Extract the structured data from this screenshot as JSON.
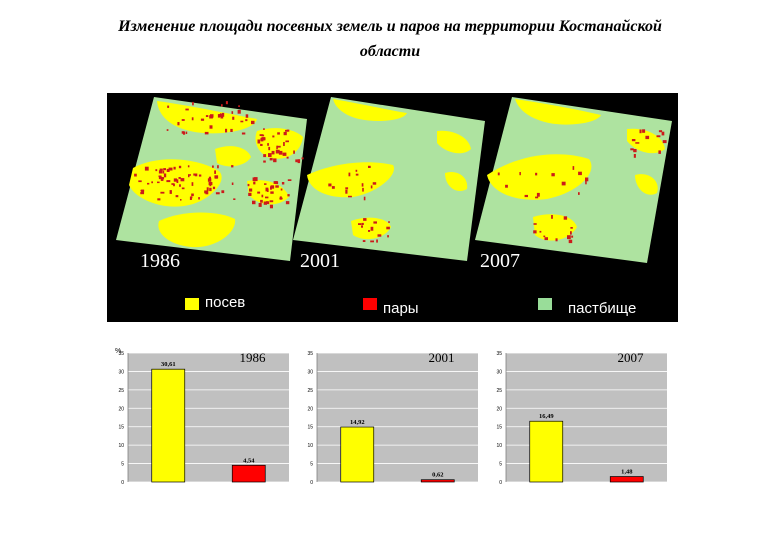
{
  "title": {
    "line1": "Изменение площади посевных земель и паров  на территории Костанайской",
    "line2": "области"
  },
  "map_panel": {
    "years": [
      "1986",
      "2001",
      "2007"
    ],
    "legend": [
      {
        "label": "посев",
        "color": "#ffff00"
      },
      {
        "label": "пары",
        "color": "#ff0000"
      },
      {
        "label": "пастбище",
        "color": "#99dd99"
      }
    ],
    "colors": {
      "background": "#000000",
      "pasture": "#aee3a0",
      "crop": "#ffff00",
      "fallow": "#cc1a1a"
    }
  },
  "chart_data": [
    {
      "type": "bar",
      "title": "1986",
      "ylabel": "%",
      "categories": [
        "посев",
        "пары"
      ],
      "values": [
        30.61,
        4.54
      ],
      "value_labels": [
        "30,61",
        "4,54"
      ],
      "colors": [
        "#ffff00",
        "#ff0000"
      ],
      "ylim": [
        0,
        35
      ],
      "yticks": [
        "0",
        "5",
        "10",
        "15",
        "20",
        "25",
        "30",
        "35"
      ],
      "grid": true
    },
    {
      "type": "bar",
      "title": "2001",
      "categories": [
        "посев",
        "пары"
      ],
      "values": [
        14.92,
        0.62
      ],
      "value_labels": [
        "14,92",
        "0,62"
      ],
      "colors": [
        "#ffff00",
        "#ff0000"
      ],
      "ylim": [
        0,
        35
      ],
      "yticks": [
        "0",
        "5",
        "10",
        "15",
        "20",
        "25",
        "30",
        "35"
      ],
      "grid": true
    },
    {
      "type": "bar",
      "title": "2007",
      "categories": [
        "посев",
        "пары"
      ],
      "values": [
        16.49,
        1.48
      ],
      "value_labels": [
        "16,49",
        "1,48"
      ],
      "colors": [
        "#ffff00",
        "#ff0000"
      ],
      "ylim": [
        0,
        35
      ],
      "yticks": [
        "0",
        "5",
        "10",
        "15",
        "20",
        "25",
        "30",
        "35"
      ],
      "grid": true
    }
  ]
}
